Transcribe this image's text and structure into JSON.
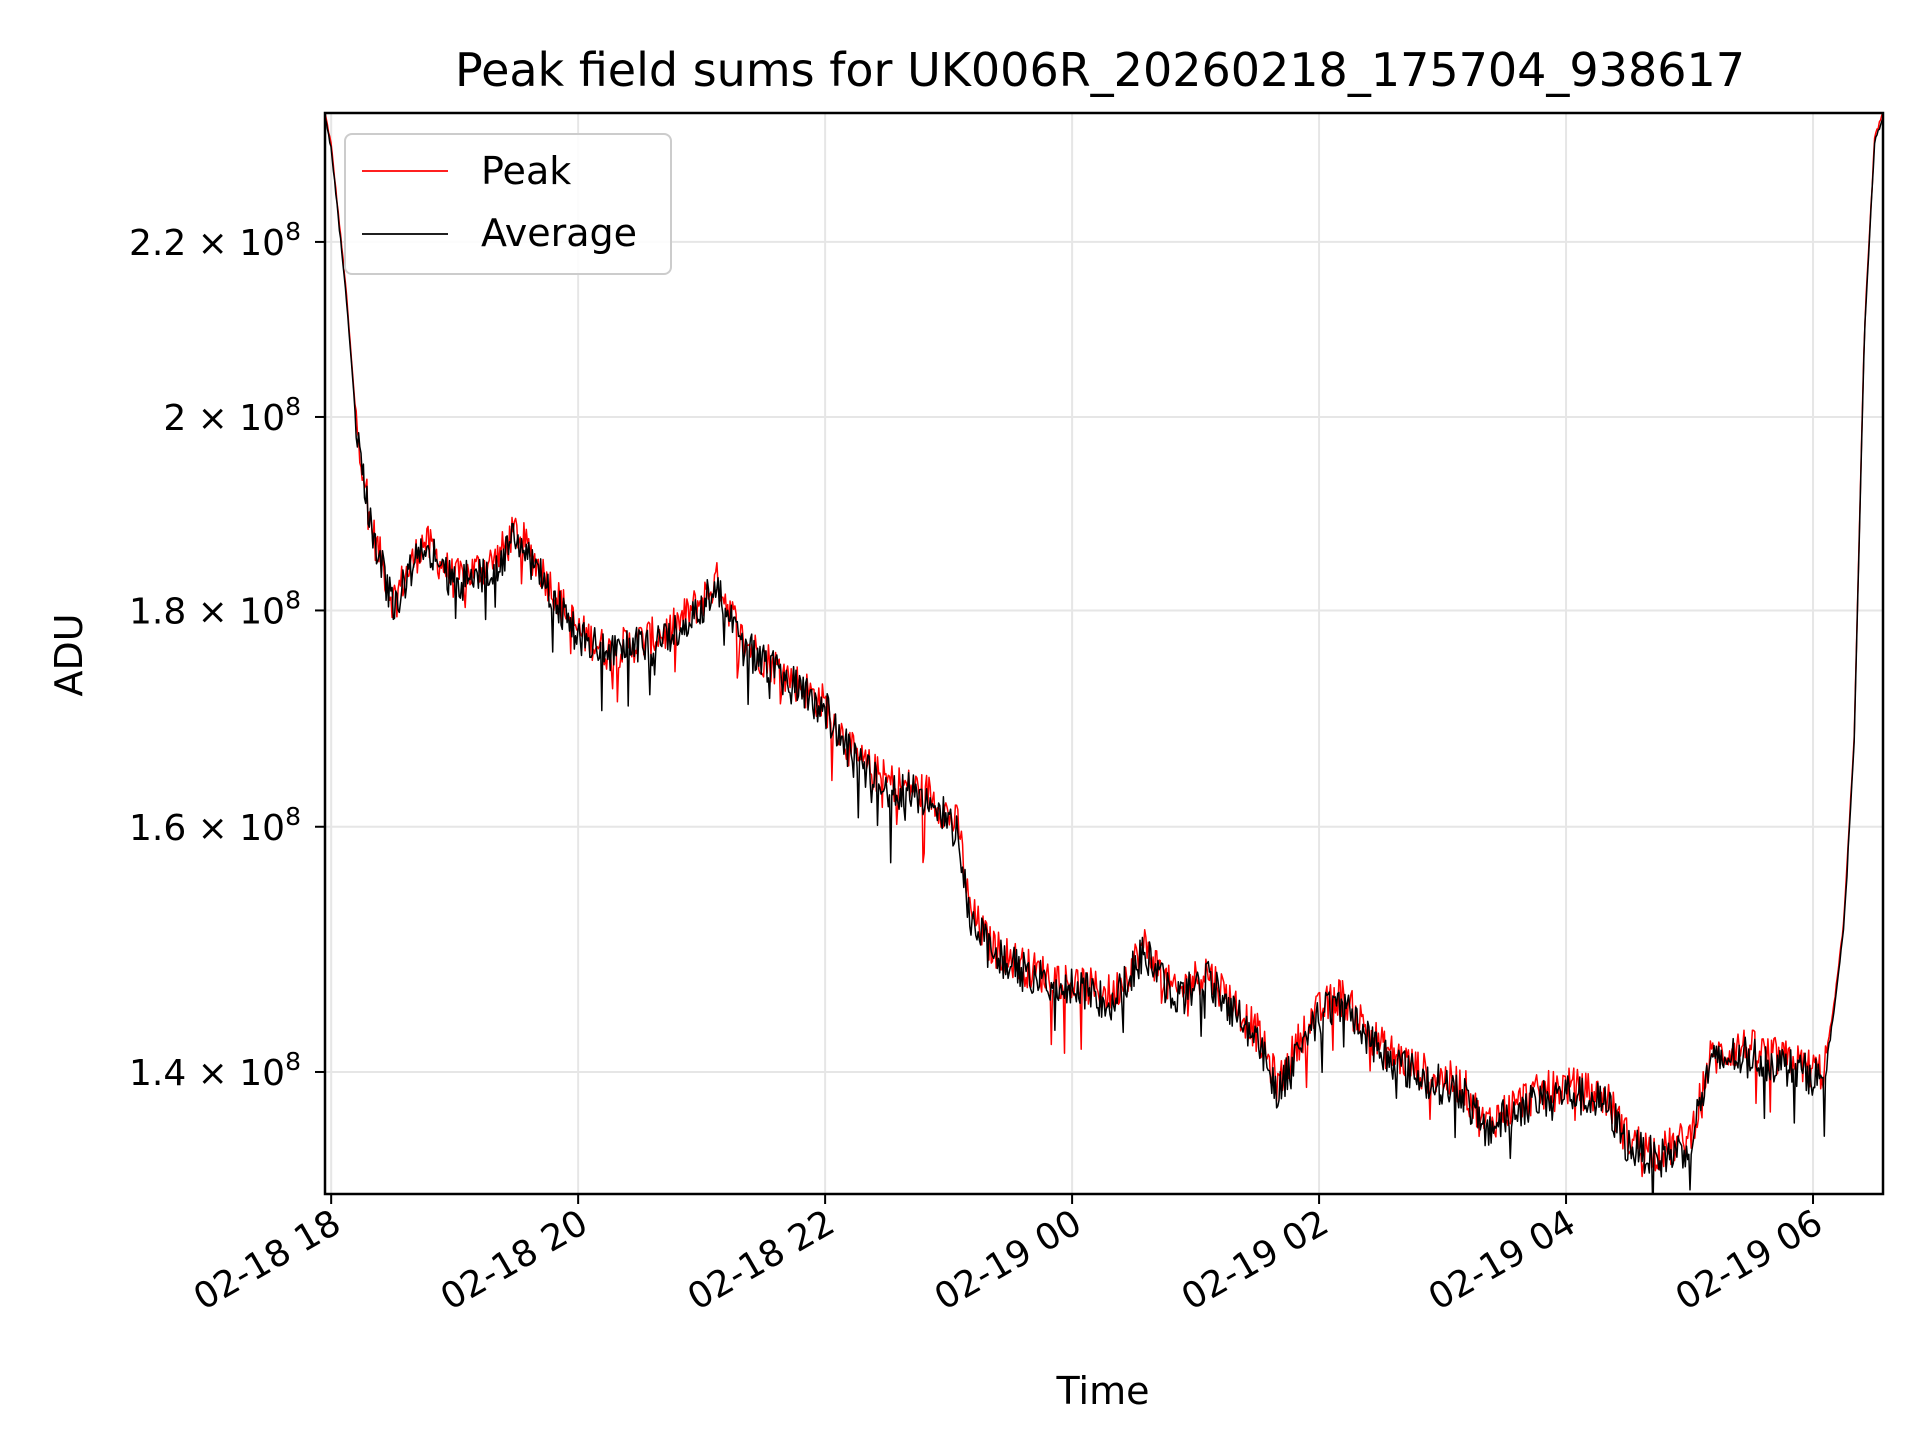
{
  "chart_data": {
    "type": "line",
    "title": "Peak field sums for UK006R_20260218_175704_938617",
    "xlabel": "Time",
    "ylabel": "ADU",
    "yscale": "log",
    "grid": true,
    "legend_placement": "upper-left",
    "xlim": [
      "2026-02-18 17:57",
      "2026-02-19 06:34"
    ],
    "ylim": [
      131000000,
      236000000
    ],
    "x_ticks": [
      {
        "value": "2026-02-18 18:00",
        "label": "02-18 18"
      },
      {
        "value": "2026-02-18 20:00",
        "label": "02-18 20"
      },
      {
        "value": "2026-02-18 22:00",
        "label": "02-18 22"
      },
      {
        "value": "2026-02-19 00:00",
        "label": "02-19 00"
      },
      {
        "value": "2026-02-19 02:00",
        "label": "02-19 02"
      },
      {
        "value": "2026-02-19 04:00",
        "label": "02-19 04"
      },
      {
        "value": "2026-02-19 06:00",
        "label": "02-19 06"
      }
    ],
    "y_ticks": [
      {
        "value": 140000000,
        "mantissa": "1.4",
        "exponent": "8"
      },
      {
        "value": 160000000,
        "mantissa": "1.6",
        "exponent": "8"
      },
      {
        "value": 180000000,
        "mantissa": "1.8",
        "exponent": "8"
      },
      {
        "value": 200000000,
        "mantissa": "2",
        "exponent": "8"
      },
      {
        "value": 220000000,
        "mantissa": "2.2",
        "exponent": "8"
      }
    ],
    "series": [
      {
        "name": "Peak",
        "color": "#ff0000",
        "x": [
          "2026-02-18 17:57",
          "2026-02-18 18:00",
          "2026-02-18 18:07",
          "2026-02-18 18:12",
          "2026-02-18 18:20",
          "2026-02-18 18:30",
          "2026-02-18 18:45",
          "2026-02-18 19:00",
          "2026-02-18 19:10",
          "2026-02-18 19:20",
          "2026-02-18 19:30",
          "2026-02-18 19:45",
          "2026-02-18 20:00",
          "2026-02-18 20:15",
          "2026-02-18 20:30",
          "2026-02-18 20:45",
          "2026-02-18 21:00",
          "2026-02-18 21:08",
          "2026-02-18 21:20",
          "2026-02-18 21:40",
          "2026-02-18 22:00",
          "2026-02-18 22:15",
          "2026-02-18 22:30",
          "2026-02-18 22:50",
          "2026-02-18 23:05",
          "2026-02-18 23:10",
          "2026-02-18 23:20",
          "2026-02-18 23:40",
          "2026-02-19 00:00",
          "2026-02-19 00:20",
          "2026-02-19 00:35",
          "2026-02-19 00:50",
          "2026-02-19 01:05",
          "2026-02-19 01:20",
          "2026-02-19 01:30",
          "2026-02-19 01:40",
          "2026-02-19 01:55",
          "2026-02-19 02:10",
          "2026-02-19 02:30",
          "2026-02-19 02:50",
          "2026-02-19 03:10",
          "2026-02-19 03:20",
          "2026-02-19 03:40",
          "2026-02-19 04:00",
          "2026-02-19 04:20",
          "2026-02-19 04:30",
          "2026-02-19 04:45",
          "2026-02-19 05:00",
          "2026-02-19 05:10",
          "2026-02-19 05:25",
          "2026-02-19 05:45",
          "2026-02-19 06:05",
          "2026-02-19 06:10",
          "2026-02-19 06:15",
          "2026-02-19 06:20",
          "2026-02-19 06:25",
          "2026-02-19 06:30",
          "2026-02-19 06:34"
        ],
        "values": [
          236000000,
          232000000,
          215000000,
          200000000,
          188000000,
          181000000,
          187000000,
          183000000,
          184000000,
          185000000,
          188000000,
          183000000,
          178000000,
          176000000,
          177000000,
          178000000,
          181000000,
          183000000,
          177000000,
          174000000,
          171000000,
          166000000,
          164000000,
          163000000,
          160000000,
          153000000,
          150000000,
          148000000,
          147000000,
          146000000,
          150000000,
          146000000,
          148000000,
          145000000,
          143000000,
          139000000,
          144000000,
          146000000,
          142000000,
          140000000,
          139000000,
          136000000,
          138000000,
          139000000,
          138000000,
          135000000,
          134000000,
          135000000,
          141000000,
          142000000,
          141000000,
          140000000,
          145000000,
          152000000,
          168000000,
          210000000,
          233000000,
          236000000
        ]
      },
      {
        "name": "Average",
        "color": "#000000",
        "x": [
          "2026-02-18 17:57",
          "2026-02-18 18:00",
          "2026-02-18 18:07",
          "2026-02-18 18:12",
          "2026-02-18 18:20",
          "2026-02-18 18:30",
          "2026-02-18 18:45",
          "2026-02-18 19:00",
          "2026-02-18 19:10",
          "2026-02-18 19:20",
          "2026-02-18 19:30",
          "2026-02-18 19:45",
          "2026-02-18 20:00",
          "2026-02-18 20:15",
          "2026-02-18 20:30",
          "2026-02-18 20:45",
          "2026-02-18 21:00",
          "2026-02-18 21:08",
          "2026-02-18 21:20",
          "2026-02-18 21:40",
          "2026-02-18 22:00",
          "2026-02-18 22:15",
          "2026-02-18 22:30",
          "2026-02-18 22:50",
          "2026-02-18 23:05",
          "2026-02-18 23:10",
          "2026-02-18 23:20",
          "2026-02-18 23:40",
          "2026-02-19 00:00",
          "2026-02-19 00:20",
          "2026-02-19 00:35",
          "2026-02-19 00:50",
          "2026-02-19 01:05",
          "2026-02-19 01:20",
          "2026-02-19 01:30",
          "2026-02-19 01:40",
          "2026-02-19 01:55",
          "2026-02-19 02:10",
          "2026-02-19 02:30",
          "2026-02-19 02:50",
          "2026-02-19 03:10",
          "2026-02-19 03:20",
          "2026-02-19 03:40",
          "2026-02-19 04:00",
          "2026-02-19 04:20",
          "2026-02-19 04:30",
          "2026-02-19 04:45",
          "2026-02-19 05:00",
          "2026-02-19 05:10",
          "2026-02-19 05:25",
          "2026-02-19 05:45",
          "2026-02-19 06:05",
          "2026-02-19 06:10",
          "2026-02-19 06:15",
          "2026-02-19 06:20",
          "2026-02-19 06:25",
          "2026-02-19 06:30",
          "2026-02-19 06:34"
        ],
        "values": [
          235500000,
          231500000,
          214500000,
          199500000,
          187500000,
          180500000,
          186500000,
          182500000,
          183500000,
          184500000,
          187500000,
          182500000,
          177500000,
          175500000,
          176500000,
          177500000,
          180500000,
          182500000,
          176500000,
          173500000,
          170500000,
          165500000,
          163500000,
          162500000,
          159500000,
          152500000,
          149500000,
          147500000,
          146500000,
          145500000,
          149500000,
          145500000,
          147500000,
          144500000,
          142500000,
          138500000,
          143500000,
          145500000,
          141500000,
          139500000,
          138500000,
          135500000,
          137500000,
          138500000,
          137500000,
          134500000,
          133500000,
          134500000,
          140500000,
          141500000,
          140500000,
          139500000,
          144500000,
          151500000,
          167500000,
          209500000,
          232500000,
          235500000
        ]
      }
    ]
  }
}
